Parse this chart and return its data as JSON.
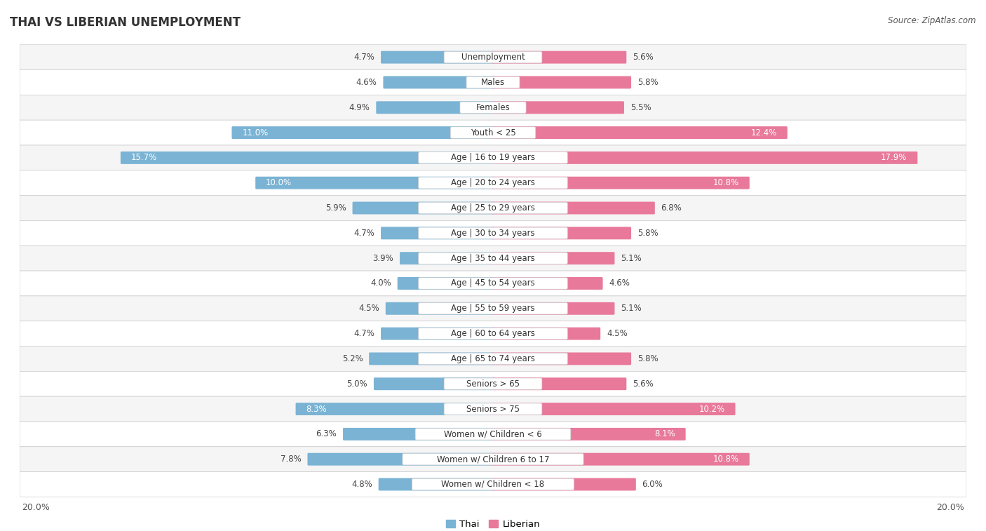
{
  "title": "THAI VS LIBERIAN UNEMPLOYMENT",
  "source": "Source: ZipAtlas.com",
  "categories": [
    "Unemployment",
    "Males",
    "Females",
    "Youth < 25",
    "Age | 16 to 19 years",
    "Age | 20 to 24 years",
    "Age | 25 to 29 years",
    "Age | 30 to 34 years",
    "Age | 35 to 44 years",
    "Age | 45 to 54 years",
    "Age | 55 to 59 years",
    "Age | 60 to 64 years",
    "Age | 65 to 74 years",
    "Seniors > 65",
    "Seniors > 75",
    "Women w/ Children < 6",
    "Women w/ Children 6 to 17",
    "Women w/ Children < 18"
  ],
  "thai_values": [
    4.7,
    4.6,
    4.9,
    11.0,
    15.7,
    10.0,
    5.9,
    4.7,
    3.9,
    4.0,
    4.5,
    4.7,
    5.2,
    5.0,
    8.3,
    6.3,
    7.8,
    4.8
  ],
  "liberian_values": [
    5.6,
    5.8,
    5.5,
    12.4,
    17.9,
    10.8,
    6.8,
    5.8,
    5.1,
    4.6,
    5.1,
    4.5,
    5.8,
    5.6,
    10.2,
    8.1,
    10.8,
    6.0
  ],
  "thai_color": "#7ab3d4",
  "liberian_color": "#e8799a",
  "x_max": 20.0,
  "legend_thai": "Thai",
  "legend_liberian": "Liberian",
  "background_color": "#ffffff",
  "row_bg_color": "#ffffff",
  "row_border_color": "#cccccc",
  "alt_row_bg_color": "#f2f2f2",
  "title_fontsize": 12,
  "source_fontsize": 8.5,
  "label_fontsize": 8.5,
  "category_fontsize": 8.5
}
